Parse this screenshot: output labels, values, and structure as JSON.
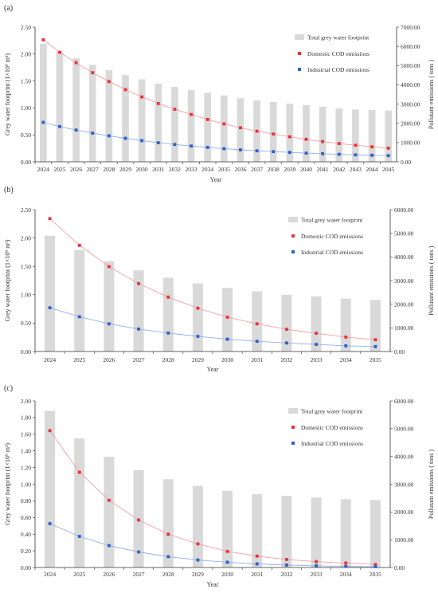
{
  "colors": {
    "bar": "#d9d9d9",
    "domestic": "#e8323a",
    "domestic_line": "#f4a0a5",
    "industrial": "#2f5fc4",
    "industrial_line": "#8fb0e6",
    "axis": "#333333"
  },
  "chart_data": [
    {
      "type": "bar",
      "panel_label": "(a)",
      "xlabel": "Year",
      "ylabel": "Grey water footprint  (1×10⁹ m³)",
      "y2label": "Pollutant emissions  ( tons )",
      "ylim": [
        0,
        2.5
      ],
      "y2lim": [
        0,
        7000
      ],
      "yticks": [
        "0.00",
        "0.50",
        "1.00",
        "1.50",
        "2.00",
        "2.50"
      ],
      "y2ticks": [
        "0.00",
        "1000.00",
        "2000.00",
        "3000.00",
        "4000.00",
        "5000.00",
        "6000.00",
        "7000.00"
      ],
      "categories": [
        "2024",
        "2025",
        "2026",
        "2027",
        "2028",
        "2029",
        "2030",
        "2031",
        "2032",
        "2033",
        "2034",
        "2035",
        "2036",
        "2037",
        "2038",
        "2039",
        "2040",
        "2041",
        "2042",
        "2043",
        "2044",
        "2045"
      ],
      "legend": [
        "Total grey water footprint",
        "Domestic COD emissions",
        "Industrial COD emissions"
      ],
      "legend_position": "top-right",
      "series": [
        {
          "name": "Total grey water footprint",
          "kind": "bar",
          "axis": "left",
          "values": [
            2.19,
            2.05,
            1.92,
            1.8,
            1.7,
            1.61,
            1.53,
            1.45,
            1.39,
            1.33,
            1.28,
            1.23,
            1.18,
            1.14,
            1.11,
            1.08,
            1.05,
            1.02,
            0.99,
            0.97,
            0.96,
            0.95
          ]
        },
        {
          "name": "Domestic COD emissions",
          "kind": "line",
          "axis": "right",
          "values": [
            6340,
            5690,
            5150,
            4630,
            4170,
            3750,
            3370,
            3030,
            2730,
            2460,
            2200,
            1970,
            1770,
            1590,
            1440,
            1300,
            1170,
            1050,
            950,
            860,
            780,
            710
          ]
        },
        {
          "name": "Industrial COD emissions",
          "kind": "line",
          "axis": "right",
          "values": [
            2050,
            1830,
            1650,
            1490,
            1350,
            1220,
            1100,
            990,
            900,
            820,
            750,
            680,
            620,
            570,
            530,
            490,
            450,
            420,
            390,
            360,
            340,
            320
          ]
        }
      ]
    },
    {
      "type": "bar",
      "panel_label": "(b)",
      "xlabel": "Year",
      "ylabel": "Grey water footprint  (1×10⁹ m³)",
      "y2label": "Pollutant emissions  ( tons )",
      "ylim": [
        0,
        2.5
      ],
      "y2lim": [
        0,
        6000
      ],
      "yticks": [
        "0.00",
        "0.50",
        "1.00",
        "1.50",
        "2.00",
        "2.50"
      ],
      "y2ticks": [
        "0.00",
        "1000.00",
        "2000.00",
        "3000.00",
        "4000.00",
        "5000.00",
        "6000.00"
      ],
      "categories": [
        "2024",
        "2025",
        "2026",
        "2027",
        "2028",
        "2029",
        "2030",
        "2031",
        "2032",
        "2033",
        "2034",
        "2035"
      ],
      "legend": [
        "Total grey water footprint",
        "Domestic COD emissions",
        "Industrial COD emissions"
      ],
      "legend_position": "top-right",
      "series": [
        {
          "name": "Total grey water footprint",
          "kind": "bar",
          "axis": "left",
          "values": [
            2.04,
            1.79,
            1.59,
            1.43,
            1.3,
            1.2,
            1.12,
            1.06,
            1.0,
            0.97,
            0.93,
            0.91
          ]
        },
        {
          "name": "Domestic COD emissions",
          "kind": "line",
          "axis": "right",
          "values": [
            5620,
            4490,
            3590,
            2870,
            2300,
            1830,
            1450,
            1170,
            940,
            770,
            610,
            500
          ]
        },
        {
          "name": "Industrial COD emissions",
          "kind": "line",
          "axis": "right",
          "values": [
            1850,
            1470,
            1170,
            950,
            780,
            640,
            520,
            430,
            360,
            300,
            240,
            210
          ]
        }
      ]
    },
    {
      "type": "bar",
      "panel_label": "(c)",
      "xlabel": "Year",
      "ylabel": "Grey water footprint  (1×10⁹ m³)",
      "y2label": "Pollutant emissions  ( tons )",
      "ylim": [
        0,
        2.0
      ],
      "y2lim": [
        0,
        6000
      ],
      "yticks": [
        "0.00",
        "0.20",
        "0.40",
        "0.60",
        "0.80",
        "1.00",
        "1.20",
        "1.40",
        "1.60",
        "1.80",
        "2.00"
      ],
      "y2ticks": [
        "0.00",
        "1000.00",
        "2000.00",
        "3000.00",
        "4000.00",
        "5000.00",
        "6000.00"
      ],
      "categories": [
        "2024",
        "2025",
        "2026",
        "2027",
        "2028",
        "2029",
        "2030",
        "2031",
        "2032",
        "2033",
        "2034",
        "2035"
      ],
      "legend": [
        "Total grey water footprint",
        "Domestic COD emissions",
        "Industrial COD emissions"
      ],
      "legend_position": "top-right",
      "series": [
        {
          "name": "Total grey water footprint",
          "kind": "bar",
          "axis": "left",
          "values": [
            1.88,
            1.55,
            1.33,
            1.17,
            1.06,
            0.98,
            0.92,
            0.88,
            0.86,
            0.84,
            0.82,
            0.81
          ]
        },
        {
          "name": "Domestic COD emissions",
          "kind": "line",
          "axis": "right",
          "values": [
            4930,
            3430,
            2420,
            1710,
            1200,
            850,
            580,
            410,
            290,
            210,
            160,
            110
          ]
        },
        {
          "name": "Industrial COD emissions",
          "kind": "line",
          "axis": "right",
          "values": [
            1580,
            1120,
            790,
            560,
            390,
            270,
            190,
            130,
            90,
            60,
            40,
            30
          ]
        }
      ]
    }
  ]
}
